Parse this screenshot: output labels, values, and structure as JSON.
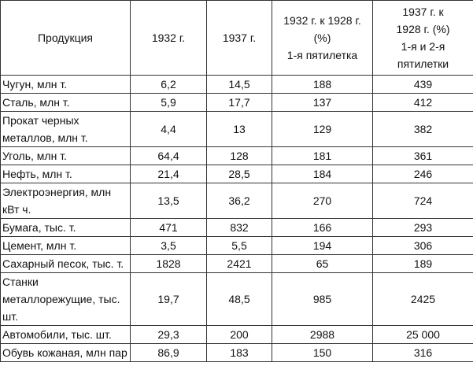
{
  "table": {
    "header": [
      [
        "Продукция"
      ],
      [
        "1932 г."
      ],
      [
        "1937 г."
      ],
      [
        "1932 г. к 1928 г.",
        "(%)",
        "1-я пятилетка"
      ],
      [
        "1937 г. к",
        "1928 г. (%)",
        "1-я и 2-я",
        "пятилетки"
      ]
    ],
    "rows": [
      [
        "Чугун, млн т.",
        "6,2",
        "14,5",
        "188",
        "439"
      ],
      [
        "Сталь, млн т.",
        "5,9",
        "17,7",
        "137",
        "412"
      ],
      [
        "Прокат черных металлов, млн т.",
        "4,4",
        "13",
        "129",
        "382"
      ],
      [
        "Уголь, млн т.",
        "64,4",
        "128",
        "181",
        "361"
      ],
      [
        "Нефть, млн т.",
        "21,4",
        "28,5",
        "184",
        "246"
      ],
      [
        "Электроэнергия, млн кВт ч.",
        "13,5",
        "36,2",
        "270",
        "724"
      ],
      [
        "Бумага, тыс. т.",
        "471",
        "832",
        "166",
        "293"
      ],
      [
        "Цемент, млн т.",
        "3,5",
        "5,5",
        "194",
        "306"
      ],
      [
        "Сахарный песок, тыс. т.",
        "1828",
        "2421",
        "65",
        "189"
      ],
      [
        "Станки металлорежущие, тыс. шт.",
        "19,7",
        "48,5",
        "985",
        "2425"
      ],
      [
        "Автомобили, тыс. шт.",
        "29,3",
        "200",
        "2988",
        "25 000"
      ],
      [
        "Обувь кожаная, млн пар",
        "86,9",
        "183",
        "150",
        "316"
      ]
    ]
  }
}
